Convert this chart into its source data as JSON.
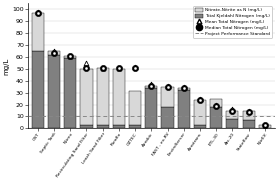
{
  "categories": [
    "OST",
    "Septic Tank",
    "Nitrex",
    "Recirculating Sand Filter",
    "Leach Sand Filter",
    "Puraflo",
    "OZTEC",
    "Aerobic",
    "FAST - ex-RV",
    "EnviroServer",
    "Aerotrans",
    "ETL-30",
    "Arc-20",
    "Stateflow",
    "NitrEX"
  ],
  "nitrate_nitrite": [
    32,
    3,
    2,
    47,
    48,
    47,
    28,
    2,
    17,
    2,
    21,
    7,
    7,
    8,
    3
  ],
  "total_kjeldahl": [
    65,
    62,
    59,
    3,
    3,
    3,
    3,
    34,
    18,
    32,
    3,
    18,
    8,
    7,
    0
  ],
  "mean_total_nitrogen": [
    98,
    65,
    61,
    55,
    51,
    51,
    52,
    37,
    36,
    35,
    25,
    20,
    16,
    15,
    3
  ],
  "median_total_nitrogen": [
    97,
    63,
    61,
    51,
    51,
    51,
    51,
    36,
    35,
    34,
    24,
    19,
    15,
    14,
    3
  ],
  "performance_standard": 10,
  "bar_color_light": "#d8d8d8",
  "bar_color_dark": "#808080",
  "ylabel": "mg/L",
  "ylim": [
    0,
    105
  ],
  "yticks": [
    0,
    10,
    20,
    30,
    40,
    50,
    60,
    70,
    80,
    90,
    100
  ],
  "legend_labels": [
    "Nitrate-Nitrite as N (mg/L)",
    "Total Kjeldahl Nitrogen (mg/L)",
    "Mean Total Nitrogen (mg/L)",
    "Median Total Nitrogen (mg/L)",
    "Project Performance Standard"
  ]
}
